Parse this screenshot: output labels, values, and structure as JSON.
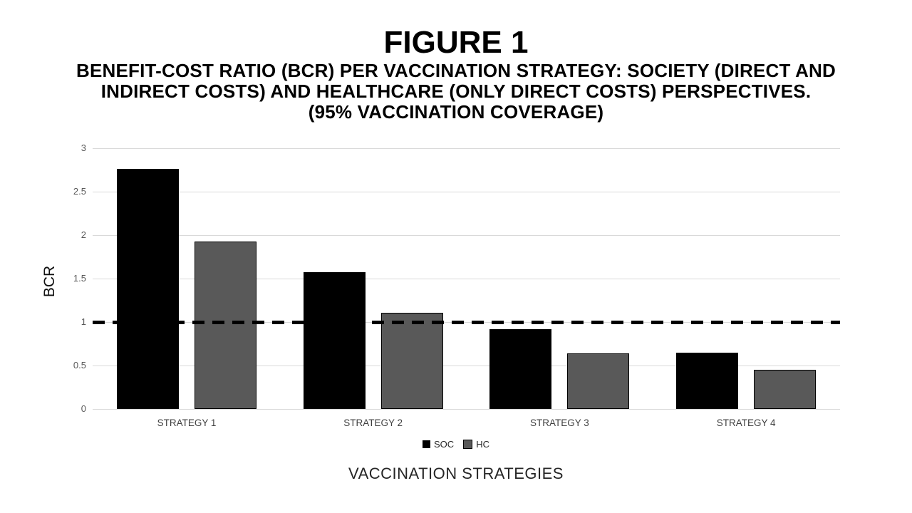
{
  "slide": {
    "background": "#FFFFFF"
  },
  "chart_data": {
    "type": "bar",
    "title": "FIGURE 1",
    "subtitle_lines": [
      "BENEFIT-COST RATIO (BCR) PER VACCINATION STRATEGY: SOCIETY (DIRECT AND",
      "INDIRECT COSTS) AND HEALTHCARE (ONLY DIRECT COSTS) PERSPECTIVES.",
      "(95% VACCINATION COVERAGE)"
    ],
    "xlabel": "VACCINATION STRATEGIES",
    "ylabel": "BCR",
    "categories": [
      "STRATEGY 1",
      "STRATEGY 2",
      "STRATEGY 3",
      "STRATEGY 4"
    ],
    "series": [
      {
        "name": "SOC",
        "color": "#000000",
        "values": [
          2.76,
          1.57,
          0.92,
          0.65
        ]
      },
      {
        "name": "HC",
        "color": "#595959",
        "values": [
          1.93,
          1.11,
          0.64,
          0.45
        ]
      }
    ],
    "ylim": [
      0,
      3
    ],
    "yticks": [
      "3",
      "2.5",
      "2",
      "1.5",
      "1",
      "0.5",
      "0"
    ],
    "grid": true,
    "gridline_color": "#D9D9D9",
    "legend_position": "bottom",
    "reference_line": {
      "value": 1,
      "style": "dashed",
      "color": "#000000"
    }
  }
}
